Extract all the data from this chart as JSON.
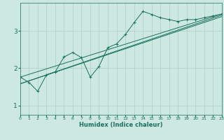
{
  "xlabel": "Humidex (Indice chaleur)",
  "background_color": "#cce8e0",
  "grid_color": "#aacfc8",
  "line_color": "#1a7060",
  "xlim": [
    0,
    23
  ],
  "ylim": [
    0.75,
    3.75
  ],
  "yticks": [
    1,
    2,
    3
  ],
  "xticks": [
    0,
    1,
    2,
    3,
    4,
    5,
    6,
    7,
    8,
    9,
    10,
    11,
    12,
    13,
    14,
    15,
    16,
    17,
    18,
    19,
    20,
    21,
    22,
    23
  ],
  "line1_x": [
    0,
    1,
    2,
    3,
    4,
    5,
    6,
    7,
    8,
    9,
    10,
    11,
    12,
    13,
    14,
    15,
    16,
    17,
    18,
    19,
    20,
    21,
    22,
    23
  ],
  "line1_y": [
    1.76,
    1.62,
    1.38,
    1.82,
    1.9,
    2.3,
    2.42,
    2.28,
    1.76,
    2.05,
    2.55,
    2.65,
    2.9,
    3.22,
    3.52,
    3.44,
    3.35,
    3.3,
    3.25,
    3.3,
    3.3,
    3.35,
    3.4,
    3.45
  ],
  "line2_x": [
    0,
    23
  ],
  "line2_y": [
    1.58,
    3.42
  ],
  "line3_x": [
    0,
    23
  ],
  "line3_y": [
    1.76,
    3.45
  ],
  "line4_x": [
    0,
    23
  ],
  "line4_y": [
    1.58,
    3.38
  ]
}
